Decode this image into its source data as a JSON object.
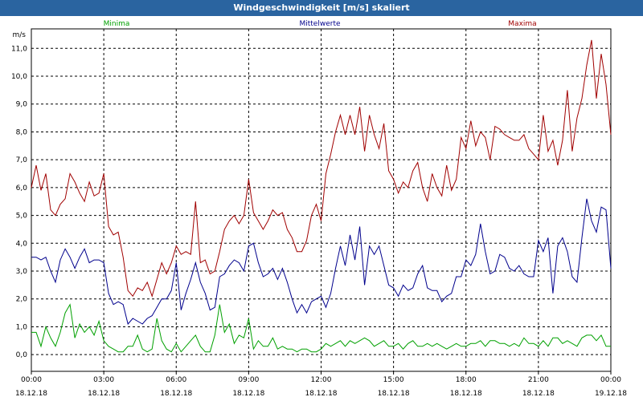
{
  "window": {
    "title": "Windgeschwindigkeit [m/s] skaliert"
  },
  "chart_data": {
    "type": "line",
    "title": "Windgeschwindigkeit [m/s] skaliert",
    "ylabel": "m/s",
    "ylim": [
      -0.6,
      11.7
    ],
    "xlim": [
      0,
      24
    ],
    "y_ticks": [
      "0,0",
      "1,0",
      "2,0",
      "3,0",
      "4,0",
      "5,0",
      "6,0",
      "7,0",
      "8,0",
      "9,0",
      "10,0",
      "11,0"
    ],
    "x_ticks": [
      {
        "time": "00:00",
        "date": "18.12.18"
      },
      {
        "time": "03:00",
        "date": "18.12.18"
      },
      {
        "time": "06:00",
        "date": "18.12.18"
      },
      {
        "time": "09:00",
        "date": "18.12.18"
      },
      {
        "time": "12:00",
        "date": "18.12.18"
      },
      {
        "time": "15:00",
        "date": "18.12.18"
      },
      {
        "time": "18:00",
        "date": "18.12.18"
      },
      {
        "time": "21:00",
        "date": "18.12.18"
      },
      {
        "time": "00:00",
        "date": "19.12.18"
      }
    ],
    "grid": true,
    "series": [
      {
        "name": "Minima",
        "color": "#00a000",
        "x": [
          0,
          0.2,
          0.4,
          0.6,
          0.8,
          1,
          1.2,
          1.4,
          1.6,
          1.8,
          2,
          2.2,
          2.4,
          2.6,
          2.8,
          3,
          3.2,
          3.4,
          3.6,
          3.8,
          4,
          4.2,
          4.4,
          4.6,
          4.8,
          5,
          5.2,
          5.4,
          5.6,
          5.8,
          6,
          6.2,
          6.4,
          6.6,
          6.8,
          7,
          7.2,
          7.4,
          7.6,
          7.8,
          8,
          8.2,
          8.4,
          8.6,
          8.8,
          9,
          9.2,
          9.4,
          9.6,
          9.8,
          10,
          10.2,
          10.4,
          10.6,
          10.8,
          11,
          11.2,
          11.4,
          11.6,
          11.8,
          12,
          12.2,
          12.4,
          12.6,
          12.8,
          13,
          13.2,
          13.4,
          13.6,
          13.8,
          14,
          14.2,
          14.4,
          14.6,
          14.8,
          15,
          15.2,
          15.4,
          15.6,
          15.8,
          16,
          16.2,
          16.4,
          16.6,
          16.8,
          17,
          17.2,
          17.4,
          17.6,
          17.8,
          18,
          18.2,
          18.4,
          18.6,
          18.8,
          19,
          19.2,
          19.4,
          19.6,
          19.8,
          20,
          20.2,
          20.4,
          20.6,
          20.8,
          21,
          21.2,
          21.4,
          21.6,
          21.8,
          22,
          22.2,
          22.4,
          22.6,
          22.8,
          23,
          23.2,
          23.4,
          23.6,
          23.8,
          24
        ],
        "values": [
          0.8,
          0.8,
          0.3,
          1.0,
          0.6,
          0.3,
          0.8,
          1.5,
          1.8,
          0.6,
          1.1,
          0.8,
          1.0,
          0.7,
          1.2,
          0.5,
          0.3,
          0.2,
          0.1,
          0.1,
          0.3,
          0.3,
          0.7,
          0.2,
          0.1,
          0.2,
          1.3,
          0.5,
          0.2,
          0.1,
          0.4,
          0.1,
          0.3,
          0.5,
          0.7,
          0.3,
          0.1,
          0.1,
          0.7,
          1.8,
          0.8,
          1.1,
          0.4,
          0.7,
          0.6,
          1.3,
          0.2,
          0.5,
          0.3,
          0.3,
          0.6,
          0.2,
          0.3,
          0.2,
          0.2,
          0.1,
          0.2,
          0.2,
          0.1,
          0.1,
          0.2,
          0.4,
          0.3,
          0.4,
          0.5,
          0.3,
          0.5,
          0.4,
          0.5,
          0.6,
          0.5,
          0.3,
          0.4,
          0.5,
          0.3,
          0.3,
          0.4,
          0.2,
          0.4,
          0.5,
          0.3,
          0.3,
          0.4,
          0.3,
          0.4,
          0.3,
          0.2,
          0.3,
          0.4,
          0.3,
          0.3,
          0.4,
          0.4,
          0.5,
          0.3,
          0.5,
          0.5,
          0.4,
          0.4,
          0.3,
          0.4,
          0.3,
          0.6,
          0.4,
          0.4,
          0.3,
          0.5,
          0.3,
          0.6,
          0.6,
          0.4,
          0.5,
          0.4,
          0.3,
          0.6,
          0.7,
          0.7,
          0.5,
          0.7,
          0.3,
          0.3
        ]
      },
      {
        "name": "Mittelwerte",
        "color": "#00008c",
        "x": [
          0,
          0.2,
          0.4,
          0.6,
          0.8,
          1,
          1.2,
          1.4,
          1.6,
          1.8,
          2,
          2.2,
          2.4,
          2.6,
          2.8,
          3,
          3.2,
          3.4,
          3.6,
          3.8,
          4,
          4.2,
          4.4,
          4.6,
          4.8,
          5,
          5.2,
          5.4,
          5.6,
          5.8,
          6,
          6.2,
          6.4,
          6.6,
          6.8,
          7,
          7.2,
          7.4,
          7.6,
          7.8,
          8,
          8.2,
          8.4,
          8.6,
          8.8,
          9,
          9.2,
          9.4,
          9.6,
          9.8,
          10,
          10.2,
          10.4,
          10.6,
          10.8,
          11,
          11.2,
          11.4,
          11.6,
          11.8,
          12,
          12.2,
          12.4,
          12.6,
          12.8,
          13,
          13.2,
          13.4,
          13.6,
          13.8,
          14,
          14.2,
          14.4,
          14.6,
          14.8,
          15,
          15.2,
          15.4,
          15.6,
          15.8,
          16,
          16.2,
          16.4,
          16.6,
          16.8,
          17,
          17.2,
          17.4,
          17.6,
          17.8,
          18,
          18.2,
          18.4,
          18.6,
          18.8,
          19,
          19.2,
          19.4,
          19.6,
          19.8,
          20,
          20.2,
          20.4,
          20.6,
          20.8,
          21,
          21.2,
          21.4,
          21.6,
          21.8,
          22,
          22.2,
          22.4,
          22.6,
          22.8,
          23,
          23.2,
          23.4,
          23.6,
          23.8,
          24
        ],
        "values": [
          3.5,
          3.5,
          3.4,
          3.5,
          3.0,
          2.6,
          3.4,
          3.8,
          3.5,
          3.1,
          3.5,
          3.8,
          3.3,
          3.4,
          3.4,
          3.3,
          2.2,
          1.8,
          1.9,
          1.8,
          1.1,
          1.3,
          1.2,
          1.1,
          1.3,
          1.4,
          1.7,
          2.0,
          2.0,
          2.3,
          3.3,
          1.6,
          2.2,
          2.7,
          3.3,
          2.6,
          2.2,
          1.6,
          1.7,
          2.8,
          2.9,
          3.2,
          3.4,
          3.3,
          3.0,
          3.9,
          4.0,
          3.3,
          2.8,
          2.9,
          3.1,
          2.7,
          3.1,
          2.6,
          2.0,
          1.5,
          1.8,
          1.5,
          1.9,
          2.0,
          2.1,
          1.7,
          2.2,
          3.1,
          3.9,
          3.2,
          4.3,
          3.4,
          4.6,
          2.5,
          3.9,
          3.6,
          3.9,
          3.2,
          2.5,
          2.4,
          2.1,
          2.5,
          2.3,
          2.4,
          2.9,
          3.2,
          2.4,
          2.3,
          2.3,
          1.9,
          2.1,
          2.2,
          2.8,
          2.8,
          3.4,
          3.2,
          3.6,
          4.7,
          3.7,
          2.9,
          3.0,
          3.6,
          3.5,
          3.1,
          3.0,
          3.2,
          2.9,
          2.8,
          2.8,
          4.1,
          3.7,
          4.2,
          2.2,
          3.9,
          4.2,
          3.7,
          2.8,
          2.6,
          4.2,
          5.6,
          4.8,
          4.4,
          5.3,
          5.2,
          3.1
        ]
      },
      {
        "name": "Maxima",
        "color": "#a00000",
        "x": [
          0,
          0.2,
          0.4,
          0.6,
          0.8,
          1,
          1.2,
          1.4,
          1.6,
          1.8,
          2,
          2.2,
          2.4,
          2.6,
          2.8,
          3,
          3.2,
          3.4,
          3.6,
          3.8,
          4,
          4.2,
          4.4,
          4.6,
          4.8,
          5,
          5.2,
          5.4,
          5.6,
          5.8,
          6,
          6.2,
          6.4,
          6.6,
          6.8,
          7,
          7.2,
          7.4,
          7.6,
          7.8,
          8,
          8.2,
          8.4,
          8.6,
          8.8,
          9,
          9.2,
          9.4,
          9.6,
          9.8,
          10,
          10.2,
          10.4,
          10.6,
          10.8,
          11,
          11.2,
          11.4,
          11.6,
          11.8,
          12,
          12.2,
          12.4,
          12.6,
          12.8,
          13,
          13.2,
          13.4,
          13.6,
          13.8,
          14,
          14.2,
          14.4,
          14.6,
          14.8,
          15,
          15.2,
          15.4,
          15.6,
          15.8,
          16,
          16.2,
          16.4,
          16.6,
          16.8,
          17,
          17.2,
          17.4,
          17.6,
          17.8,
          18,
          18.2,
          18.4,
          18.6,
          18.8,
          19,
          19.2,
          19.4,
          19.6,
          19.8,
          20,
          20.2,
          20.4,
          20.6,
          20.8,
          21,
          21.2,
          21.4,
          21.6,
          21.8,
          22,
          22.2,
          22.4,
          22.6,
          22.8,
          23,
          23.2,
          23.4,
          23.6,
          23.8,
          24
        ],
        "values": [
          6.0,
          6.8,
          5.9,
          6.5,
          5.2,
          5.0,
          5.4,
          5.6,
          6.5,
          6.2,
          5.8,
          5.5,
          6.2,
          5.7,
          5.8,
          6.5,
          4.6,
          4.3,
          4.4,
          3.5,
          2.3,
          2.1,
          2.4,
          2.3,
          2.6,
          2.1,
          2.7,
          3.3,
          2.9,
          3.3,
          3.9,
          3.6,
          3.7,
          3.6,
          5.5,
          3.3,
          3.4,
          2.9,
          3.0,
          3.7,
          4.5,
          4.8,
          5.0,
          4.7,
          5.0,
          6.3,
          5.1,
          4.8,
          4.5,
          4.8,
          5.2,
          5.0,
          5.1,
          4.5,
          4.2,
          3.7,
          3.7,
          4.1,
          5.0,
          5.4,
          4.8,
          6.5,
          7.2,
          8.0,
          8.6,
          7.9,
          8.6,
          7.9,
          8.9,
          7.3,
          8.6,
          7.9,
          7.4,
          8.3,
          6.6,
          6.3,
          5.8,
          6.2,
          6.0,
          6.6,
          6.9,
          6.0,
          5.5,
          6.5,
          6.0,
          5.7,
          6.8,
          5.9,
          6.3,
          7.8,
          7.4,
          8.4,
          7.5,
          8.0,
          7.8,
          7.0,
          8.2,
          8.1,
          7.9,
          7.8,
          7.7,
          7.7,
          7.9,
          7.4,
          7.2,
          7.0,
          8.6,
          7.3,
          7.7,
          6.8,
          7.7,
          9.5,
          7.3,
          8.5,
          9.2,
          10.4,
          11.3,
          9.2,
          10.8,
          9.7,
          7.9
        ]
      }
    ]
  }
}
